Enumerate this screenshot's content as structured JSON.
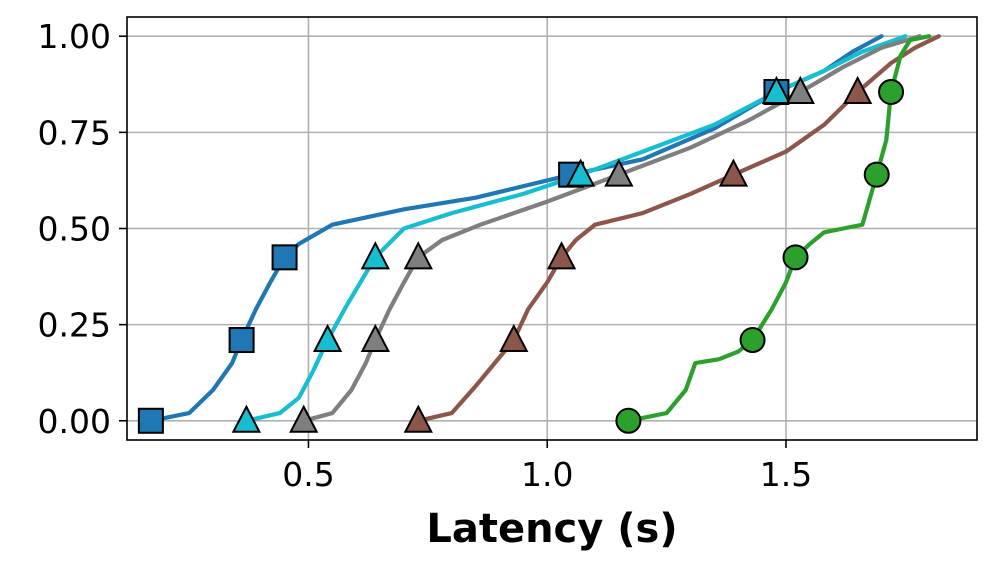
{
  "chart_data": {
    "type": "line",
    "title": "",
    "xlabel": "Latency (s)",
    "ylabel": "",
    "xlim": [
      0.12,
      1.9
    ],
    "ylim": [
      -0.05,
      1.05
    ],
    "xticks": [
      0.5,
      1.0,
      1.5
    ],
    "xtick_labels": [
      "0.5",
      "1.0",
      "1.5"
    ],
    "yticks": [
      0.0,
      0.25,
      0.5,
      0.75,
      1.0
    ],
    "ytick_labels": [
      "0.00",
      "0.25",
      "0.50",
      "0.75",
      "1.00"
    ],
    "grid": true,
    "legend": "none",
    "series": [
      {
        "color": "#1f77b4",
        "marker": "square",
        "points": [
          [
            0.17,
            0.0
          ],
          [
            0.25,
            0.02
          ],
          [
            0.3,
            0.08
          ],
          [
            0.34,
            0.15
          ],
          [
            0.36,
            0.21
          ],
          [
            0.39,
            0.29
          ],
          [
            0.42,
            0.36
          ],
          [
            0.45,
            0.425
          ],
          [
            0.48,
            0.46
          ],
          [
            0.55,
            0.51
          ],
          [
            0.7,
            0.55
          ],
          [
            0.85,
            0.58
          ],
          [
            1.05,
            0.64
          ],
          [
            1.2,
            0.68
          ],
          [
            1.35,
            0.76
          ],
          [
            1.48,
            0.855
          ],
          [
            1.58,
            0.91
          ],
          [
            1.64,
            0.96
          ],
          [
            1.7,
            1.0
          ]
        ],
        "marker_points": [
          [
            0.17,
            0.0
          ],
          [
            0.36,
            0.21
          ],
          [
            0.45,
            0.425
          ],
          [
            1.05,
            0.64
          ],
          [
            1.48,
            0.855
          ]
        ]
      },
      {
        "color": "#17becf",
        "marker": "triangle",
        "points": [
          [
            0.37,
            0.0
          ],
          [
            0.44,
            0.02
          ],
          [
            0.48,
            0.06
          ],
          [
            0.51,
            0.13
          ],
          [
            0.54,
            0.21
          ],
          [
            0.58,
            0.3
          ],
          [
            0.64,
            0.425
          ],
          [
            0.7,
            0.5
          ],
          [
            0.8,
            0.54
          ],
          [
            0.95,
            0.59
          ],
          [
            1.07,
            0.64
          ],
          [
            1.2,
            0.7
          ],
          [
            1.35,
            0.77
          ],
          [
            1.48,
            0.855
          ],
          [
            1.58,
            0.91
          ],
          [
            1.66,
            0.96
          ],
          [
            1.75,
            1.0
          ]
        ],
        "marker_points": [
          [
            0.37,
            0.0
          ],
          [
            0.54,
            0.21
          ],
          [
            0.64,
            0.425
          ],
          [
            1.07,
            0.64
          ],
          [
            1.48,
            0.855
          ]
        ]
      },
      {
        "color": "#7f7f7f",
        "marker": "triangle",
        "points": [
          [
            0.49,
            0.0
          ],
          [
            0.55,
            0.02
          ],
          [
            0.59,
            0.08
          ],
          [
            0.62,
            0.15
          ],
          [
            0.64,
            0.21
          ],
          [
            0.67,
            0.29
          ],
          [
            0.7,
            0.36
          ],
          [
            0.73,
            0.425
          ],
          [
            0.78,
            0.47
          ],
          [
            0.86,
            0.51
          ],
          [
            1.0,
            0.57
          ],
          [
            1.15,
            0.64
          ],
          [
            1.3,
            0.71
          ],
          [
            1.42,
            0.78
          ],
          [
            1.53,
            0.855
          ],
          [
            1.62,
            0.92
          ],
          [
            1.7,
            0.97
          ],
          [
            1.78,
            1.0
          ]
        ],
        "marker_points": [
          [
            0.49,
            0.0
          ],
          [
            0.64,
            0.21
          ],
          [
            0.73,
            0.425
          ],
          [
            1.15,
            0.64
          ],
          [
            1.53,
            0.855
          ]
        ]
      },
      {
        "color": "#8c564b",
        "marker": "triangle",
        "points": [
          [
            0.73,
            0.0
          ],
          [
            0.8,
            0.02
          ],
          [
            0.85,
            0.09
          ],
          [
            0.89,
            0.15
          ],
          [
            0.93,
            0.21
          ],
          [
            0.96,
            0.29
          ],
          [
            1.0,
            0.36
          ],
          [
            1.03,
            0.425
          ],
          [
            1.06,
            0.47
          ],
          [
            1.1,
            0.51
          ],
          [
            1.2,
            0.54
          ],
          [
            1.3,
            0.59
          ],
          [
            1.39,
            0.64
          ],
          [
            1.5,
            0.7
          ],
          [
            1.58,
            0.77
          ],
          [
            1.65,
            0.855
          ],
          [
            1.72,
            0.93
          ],
          [
            1.77,
            0.97
          ],
          [
            1.82,
            1.0
          ]
        ],
        "marker_points": [
          [
            0.73,
            0.0
          ],
          [
            0.93,
            0.21
          ],
          [
            1.03,
            0.425
          ],
          [
            1.39,
            0.64
          ],
          [
            1.65,
            0.855
          ]
        ]
      },
      {
        "color": "#2ca02c",
        "marker": "circle",
        "points": [
          [
            1.17,
            0.0
          ],
          [
            1.25,
            0.02
          ],
          [
            1.29,
            0.08
          ],
          [
            1.31,
            0.15
          ],
          [
            1.36,
            0.16
          ],
          [
            1.4,
            0.18
          ],
          [
            1.43,
            0.21
          ],
          [
            1.47,
            0.29
          ],
          [
            1.5,
            0.36
          ],
          [
            1.52,
            0.425
          ],
          [
            1.55,
            0.46
          ],
          [
            1.58,
            0.49
          ],
          [
            1.62,
            0.5
          ],
          [
            1.66,
            0.51
          ],
          [
            1.69,
            0.64
          ],
          [
            1.71,
            0.73
          ],
          [
            1.72,
            0.855
          ],
          [
            1.74,
            0.95
          ],
          [
            1.76,
            0.99
          ],
          [
            1.8,
            1.0
          ]
        ],
        "marker_points": [
          [
            1.17,
            0.0
          ],
          [
            1.43,
            0.21
          ],
          [
            1.52,
            0.425
          ],
          [
            1.69,
            0.64
          ],
          [
            1.72,
            0.855
          ]
        ]
      }
    ]
  }
}
